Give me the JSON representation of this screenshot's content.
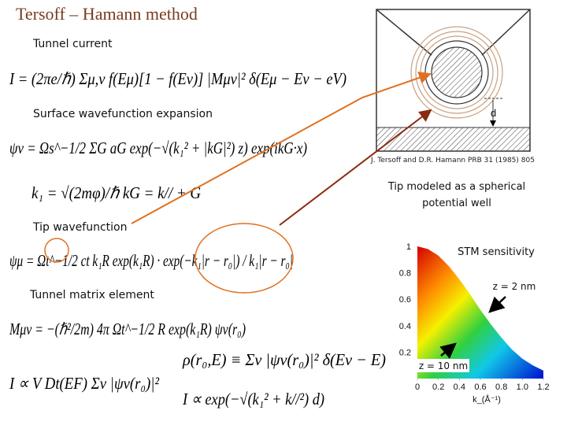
{
  "title": "Tersoff – Hamann method",
  "sections": [
    {
      "heading": "Tunnel current",
      "equations": [
        "I = (2πe/ℏ) Σμ,ν f(Eμ)[1 − f(Eν)] |Mμν|² δ(Eμ − Eν − eV)"
      ]
    },
    {
      "heading": "Surface wavefunction expansion",
      "equations": [
        "ψν = Ωs^−1/2 ΣG aG exp(−√(k₁² + |kG|²) z) exp(ikG·x)",
        "k₁ = √(2mφ)/ℏ      kG = k// + G"
      ]
    },
    {
      "heading": "Tip wavefunction",
      "equations": [
        "ψμ = Ωt^−1/2 ct k₁R exp(k₁R) · exp(−k₁|r − r₀|) / k₁|r − r₀|"
      ]
    },
    {
      "heading": "Tunnel matrix element",
      "equations": [
        "Mμν = −(ℏ²/2m) 4π Ωt^−1/2 R exp(k₁R) ψν(r₀)",
        "ρ(r₀,E) ≡ Σν |ψν(r₀)|² δ(Eν − E)",
        "I ∝ V Dt(EF) Σν |ψν(r₀)|²",
        "I ∝ exp(−√(k₁² + k//²) d)"
      ]
    }
  ],
  "figure": {
    "label": "d",
    "caption": "J. Tersoff and D.R. Hamann PRB 31 (1985) 805",
    "description": [
      "Tip modeled as a spherical",
      "potential well"
    ]
  },
  "chart": {
    "type": "area",
    "title": "STM sensitivity",
    "x": [
      0,
      0.1,
      0.2,
      0.3,
      0.4,
      0.5,
      0.6,
      0.7,
      0.8,
      0.9,
      1.0,
      1.1,
      1.2
    ],
    "values": [
      1,
      0.98,
      0.93,
      0.85,
      0.75,
      0.64,
      0.52,
      0.41,
      0.31,
      0.22,
      0.15,
      0.1,
      0.06
    ],
    "xlim": [
      0,
      1.2
    ],
    "ylim": [
      0,
      1
    ],
    "xticks": [
      0,
      0.2,
      0.4,
      0.6,
      0.8,
      {
        "value": 1,
        "label": "1.0"
      },
      1.2
    ],
    "yticks": [
      0.2,
      0.4,
      0.6,
      0.8,
      1
    ],
    "x_label": "k_(Å⁻¹)",
    "annotations": [
      "z = 2 nm",
      "z = 10 nm"
    ]
  }
}
